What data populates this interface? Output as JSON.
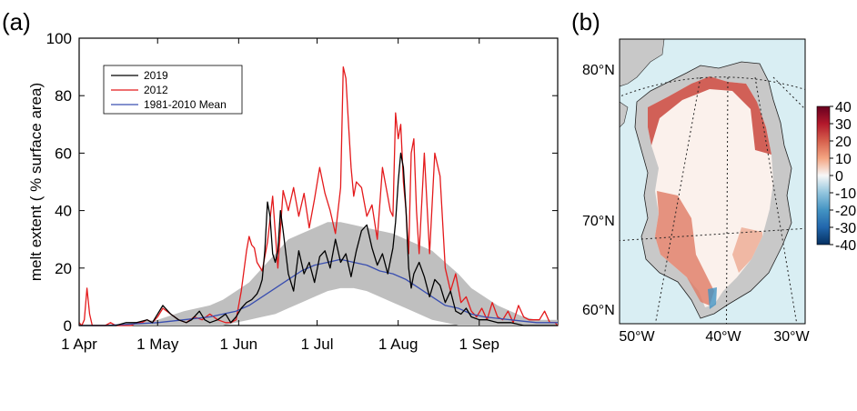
{
  "panel_a_label": "(a)",
  "panel_b_label": "(b)",
  "chart_data": {
    "type": "line",
    "xlabel": "",
    "ylabel": "melt extent ( % surface area)",
    "ylim": [
      0,
      100
    ],
    "xlim": [
      0,
      183
    ],
    "yticks": [
      0,
      20,
      40,
      60,
      80,
      100
    ],
    "xticks": [
      {
        "label": "1 Apr",
        "day": 0
      },
      {
        "label": "1 May",
        "day": 30
      },
      {
        "label": "1 Jun",
        "day": 61
      },
      {
        "label": "1 Jul",
        "day": 91
      },
      {
        "label": "1 Aug",
        "day": 122
      },
      {
        "label": "1 Sep",
        "day": 153
      }
    ],
    "grid": false,
    "legend_position": "top-left",
    "series": [
      {
        "name": "2019",
        "color": "#000000",
        "x": [
          0,
          5,
          10,
          14,
          18,
          22,
          26,
          28,
          30,
          32,
          35,
          38,
          41,
          43,
          46,
          48,
          50,
          53,
          56,
          58,
          60,
          62,
          64,
          66,
          68,
          69,
          70,
          71,
          72,
          73,
          74,
          75,
          76,
          77,
          78,
          80,
          82,
          84,
          86,
          88,
          90,
          92,
          94,
          96,
          98,
          100,
          102,
          104,
          106,
          108,
          110,
          112,
          114,
          116,
          118,
          120,
          121,
          122,
          123,
          124,
          125,
          126,
          127,
          128,
          130,
          132,
          134,
          136,
          138,
          140,
          142,
          144,
          146,
          148,
          150,
          153,
          156,
          160,
          165,
          170,
          175,
          180,
          183
        ],
        "y": [
          0,
          0,
          0,
          0,
          1,
          1,
          2,
          1,
          4,
          7,
          4,
          2,
          1,
          2,
          5,
          2,
          1,
          2,
          4,
          1,
          3,
          6,
          8,
          9,
          11,
          13,
          16,
          26,
          43,
          38,
          25,
          22,
          26,
          40,
          33,
          18,
          12,
          26,
          18,
          22,
          15,
          24,
          26,
          20,
          30,
          22,
          25,
          17,
          26,
          33,
          35,
          27,
          21,
          25,
          18,
          27,
          36,
          50,
          60,
          55,
          40,
          20,
          13,
          18,
          22,
          17,
          10,
          16,
          14,
          8,
          12,
          5,
          4,
          6,
          3,
          2,
          2,
          1,
          1,
          0,
          0,
          0,
          0
        ]
      },
      {
        "name": "2012",
        "color": "#e41a1c",
        "x": [
          0,
          1,
          2,
          3,
          4,
          5,
          6,
          7,
          8,
          10,
          12,
          14,
          16,
          18,
          20,
          22,
          24,
          26,
          28,
          30,
          32,
          35,
          38,
          41,
          44,
          47,
          50,
          53,
          56,
          58,
          60,
          62,
          64,
          65,
          66,
          67,
          68,
          70,
          72,
          74,
          76,
          78,
          80,
          82,
          84,
          86,
          88,
          90,
          92,
          94,
          96,
          98,
          100,
          101,
          102,
          103,
          104,
          105,
          106,
          108,
          110,
          112,
          114,
          116,
          118,
          119,
          120,
          121,
          122,
          123,
          124,
          125,
          126,
          127,
          128,
          129,
          130,
          132,
          134,
          136,
          138,
          140,
          142,
          144,
          146,
          148,
          150,
          152,
          154,
          156,
          158,
          160,
          162,
          164,
          166,
          168,
          170,
          172,
          174,
          176,
          178,
          180,
          182,
          183
        ],
        "y": [
          1,
          0,
          2,
          13,
          4,
          0,
          0,
          0,
          0,
          0,
          1,
          0,
          0,
          0,
          0,
          1,
          1,
          2,
          1,
          3,
          6,
          4,
          2,
          1,
          3,
          2,
          4,
          2,
          1,
          1,
          2,
          12,
          26,
          31,
          28,
          27,
          22,
          19,
          29,
          45,
          20,
          47,
          40,
          48,
          38,
          46,
          34,
          44,
          55,
          46,
          40,
          32,
          48,
          90,
          86,
          70,
          55,
          45,
          50,
          48,
          38,
          42,
          30,
          55,
          45,
          40,
          38,
          74,
          65,
          70,
          50,
          40,
          25,
          60,
          65,
          40,
          25,
          60,
          25,
          60,
          52,
          20,
          12,
          18,
          8,
          10,
          5,
          3,
          6,
          2,
          8,
          3,
          2,
          5,
          1,
          7,
          3,
          2,
          2,
          2,
          5,
          1,
          1,
          0
        ]
      },
      {
        "name": "1981-2010 Mean",
        "color": "#3a4fb0",
        "x": [
          0,
          10,
          20,
          30,
          40,
          50,
          55,
          60,
          65,
          70,
          75,
          80,
          85,
          90,
          95,
          100,
          105,
          110,
          115,
          120,
          125,
          130,
          135,
          140,
          145,
          150,
          155,
          160,
          165,
          170,
          175,
          180,
          183
        ],
        "y": [
          0,
          0,
          0.5,
          1,
          2,
          3,
          4,
          5,
          7,
          10,
          13,
          16,
          19,
          21,
          22,
          23,
          22,
          21,
          19,
          18,
          16,
          13,
          10,
          7,
          6,
          4,
          3,
          2.5,
          2,
          1.5,
          1,
          1,
          1
        ]
      },
      {
        "name": "",
        "type": "band",
        "color": "#bfbfbf",
        "x": [
          0,
          10,
          20,
          30,
          40,
          50,
          55,
          60,
          65,
          70,
          75,
          80,
          85,
          90,
          95,
          100,
          105,
          110,
          115,
          120,
          125,
          130,
          135,
          140,
          145,
          150,
          155,
          160,
          165,
          170,
          175,
          180,
          183
        ],
        "upper": [
          0,
          0,
          1,
          2,
          5,
          7,
          9,
          12,
          15,
          20,
          25,
          30,
          32,
          34,
          36,
          36,
          35,
          34,
          33,
          32,
          30,
          28,
          26,
          22,
          18,
          13,
          10,
          7,
          5,
          3,
          2,
          2,
          2
        ],
        "lower": [
          0,
          0,
          0,
          0,
          0,
          0,
          0,
          1,
          2,
          3,
          4,
          6,
          8,
          10,
          12,
          13,
          13,
          12,
          10,
          8,
          6,
          4,
          2,
          1,
          0,
          0,
          0,
          0,
          0,
          0,
          0,
          0,
          0
        ]
      }
    ]
  },
  "map": {
    "lat_labels": [
      "80°N",
      "70°N",
      "60°N"
    ],
    "lon_labels": [
      "50°W",
      "40°W",
      "30°W"
    ],
    "colorbar_ticks": [
      "40",
      "30",
      "20",
      "10",
      "0",
      "-10",
      "-20",
      "-30",
      "-40"
    ],
    "colorbar_range": [
      -40,
      40
    ],
    "ocean_color": "#d9eef3",
    "land_color": "#c8c8c8"
  }
}
